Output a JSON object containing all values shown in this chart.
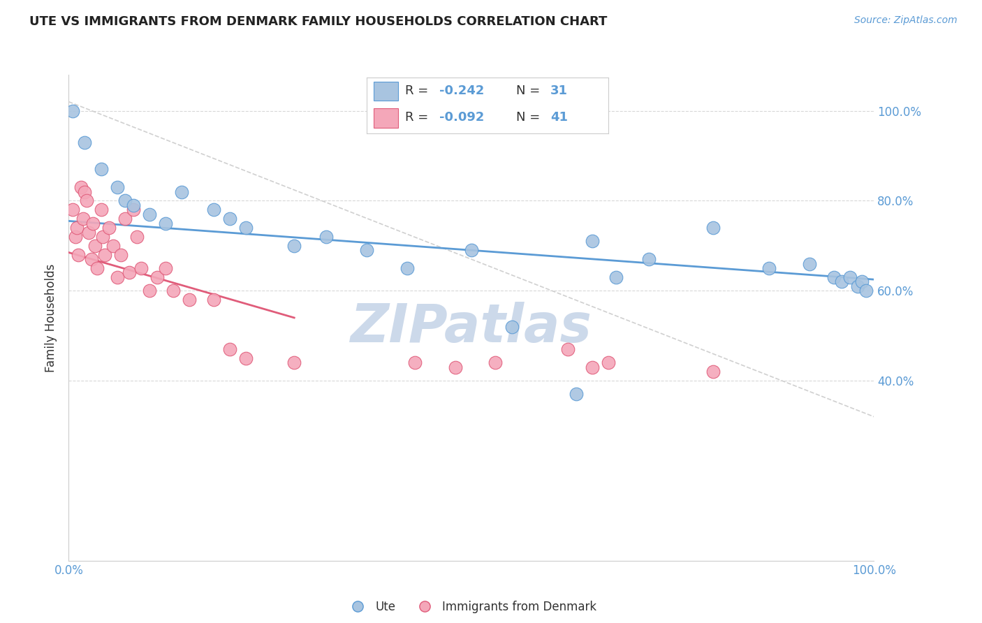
{
  "title": "UTE VS IMMIGRANTS FROM DENMARK FAMILY HOUSEHOLDS CORRELATION CHART",
  "source": "Source: ZipAtlas.com",
  "ylabel": "Family Households",
  "watermark": "ZIPatlas",
  "legend_r_blue": "-0.242",
  "legend_n_blue": "31",
  "legend_r_pink": "-0.092",
  "legend_n_pink": "41",
  "legend_label_blue": "Ute",
  "legend_label_pink": "Immigrants from Denmark",
  "xlim": [
    0.0,
    1.0
  ],
  "ylim": [
    0.0,
    1.08
  ],
  "ytick_vals": [
    0.4,
    0.6,
    0.8,
    1.0
  ],
  "ytick_labels": [
    "40.0%",
    "60.0%",
    "80.0%",
    "100.0%"
  ],
  "blue_scatter_x": [
    0.005,
    0.02,
    0.04,
    0.06,
    0.07,
    0.08,
    0.1,
    0.12,
    0.14,
    0.18,
    0.2,
    0.22,
    0.28,
    0.32,
    0.37,
    0.42,
    0.5,
    0.55,
    0.63,
    0.65,
    0.68,
    0.72,
    0.8,
    0.87,
    0.92,
    0.95,
    0.96,
    0.97,
    0.98,
    0.985,
    0.99
  ],
  "blue_scatter_y": [
    1.0,
    0.93,
    0.87,
    0.83,
    0.8,
    0.79,
    0.77,
    0.75,
    0.82,
    0.78,
    0.76,
    0.74,
    0.7,
    0.72,
    0.69,
    0.65,
    0.69,
    0.52,
    0.37,
    0.71,
    0.63,
    0.67,
    0.74,
    0.65,
    0.66,
    0.63,
    0.62,
    0.63,
    0.61,
    0.62,
    0.6
  ],
  "pink_scatter_x": [
    0.005,
    0.008,
    0.01,
    0.012,
    0.015,
    0.018,
    0.02,
    0.022,
    0.025,
    0.028,
    0.03,
    0.033,
    0.035,
    0.04,
    0.042,
    0.045,
    0.05,
    0.055,
    0.06,
    0.065,
    0.07,
    0.075,
    0.08,
    0.085,
    0.09,
    0.1,
    0.11,
    0.12,
    0.13,
    0.15,
    0.18,
    0.2,
    0.22,
    0.28,
    0.43,
    0.48,
    0.53,
    0.62,
    0.65,
    0.67,
    0.8
  ],
  "pink_scatter_y": [
    0.78,
    0.72,
    0.74,
    0.68,
    0.83,
    0.76,
    0.82,
    0.8,
    0.73,
    0.67,
    0.75,
    0.7,
    0.65,
    0.78,
    0.72,
    0.68,
    0.74,
    0.7,
    0.63,
    0.68,
    0.76,
    0.64,
    0.78,
    0.72,
    0.65,
    0.6,
    0.63,
    0.65,
    0.6,
    0.58,
    0.58,
    0.47,
    0.45,
    0.44,
    0.44,
    0.43,
    0.44,
    0.47,
    0.43,
    0.44,
    0.42
  ],
  "blue_line_x0": 0.0,
  "blue_line_x1": 1.0,
  "blue_line_y0": 0.755,
  "blue_line_y1": 0.625,
  "pink_line_x0": 0.0,
  "pink_line_x1": 0.28,
  "pink_line_y0": 0.685,
  "pink_line_y1": 0.54,
  "dashed_line_x0": 0.0,
  "dashed_line_x1": 1.0,
  "dashed_line_y0": 1.02,
  "dashed_line_y1": 0.32,
  "color_blue_fill": "#a8c4e0",
  "color_blue_edge": "#5b9bd5",
  "color_pink_fill": "#f4a7b9",
  "color_pink_edge": "#e05c7a",
  "color_blue_line": "#5b9bd5",
  "color_pink_line": "#e05c7a",
  "color_dashed": "#d0d0d0",
  "color_tick": "#5b9bd5",
  "color_title": "#222222",
  "color_source": "#5b9bd5",
  "color_watermark": "#ccd9ea",
  "color_grid": "#d8d8d8"
}
